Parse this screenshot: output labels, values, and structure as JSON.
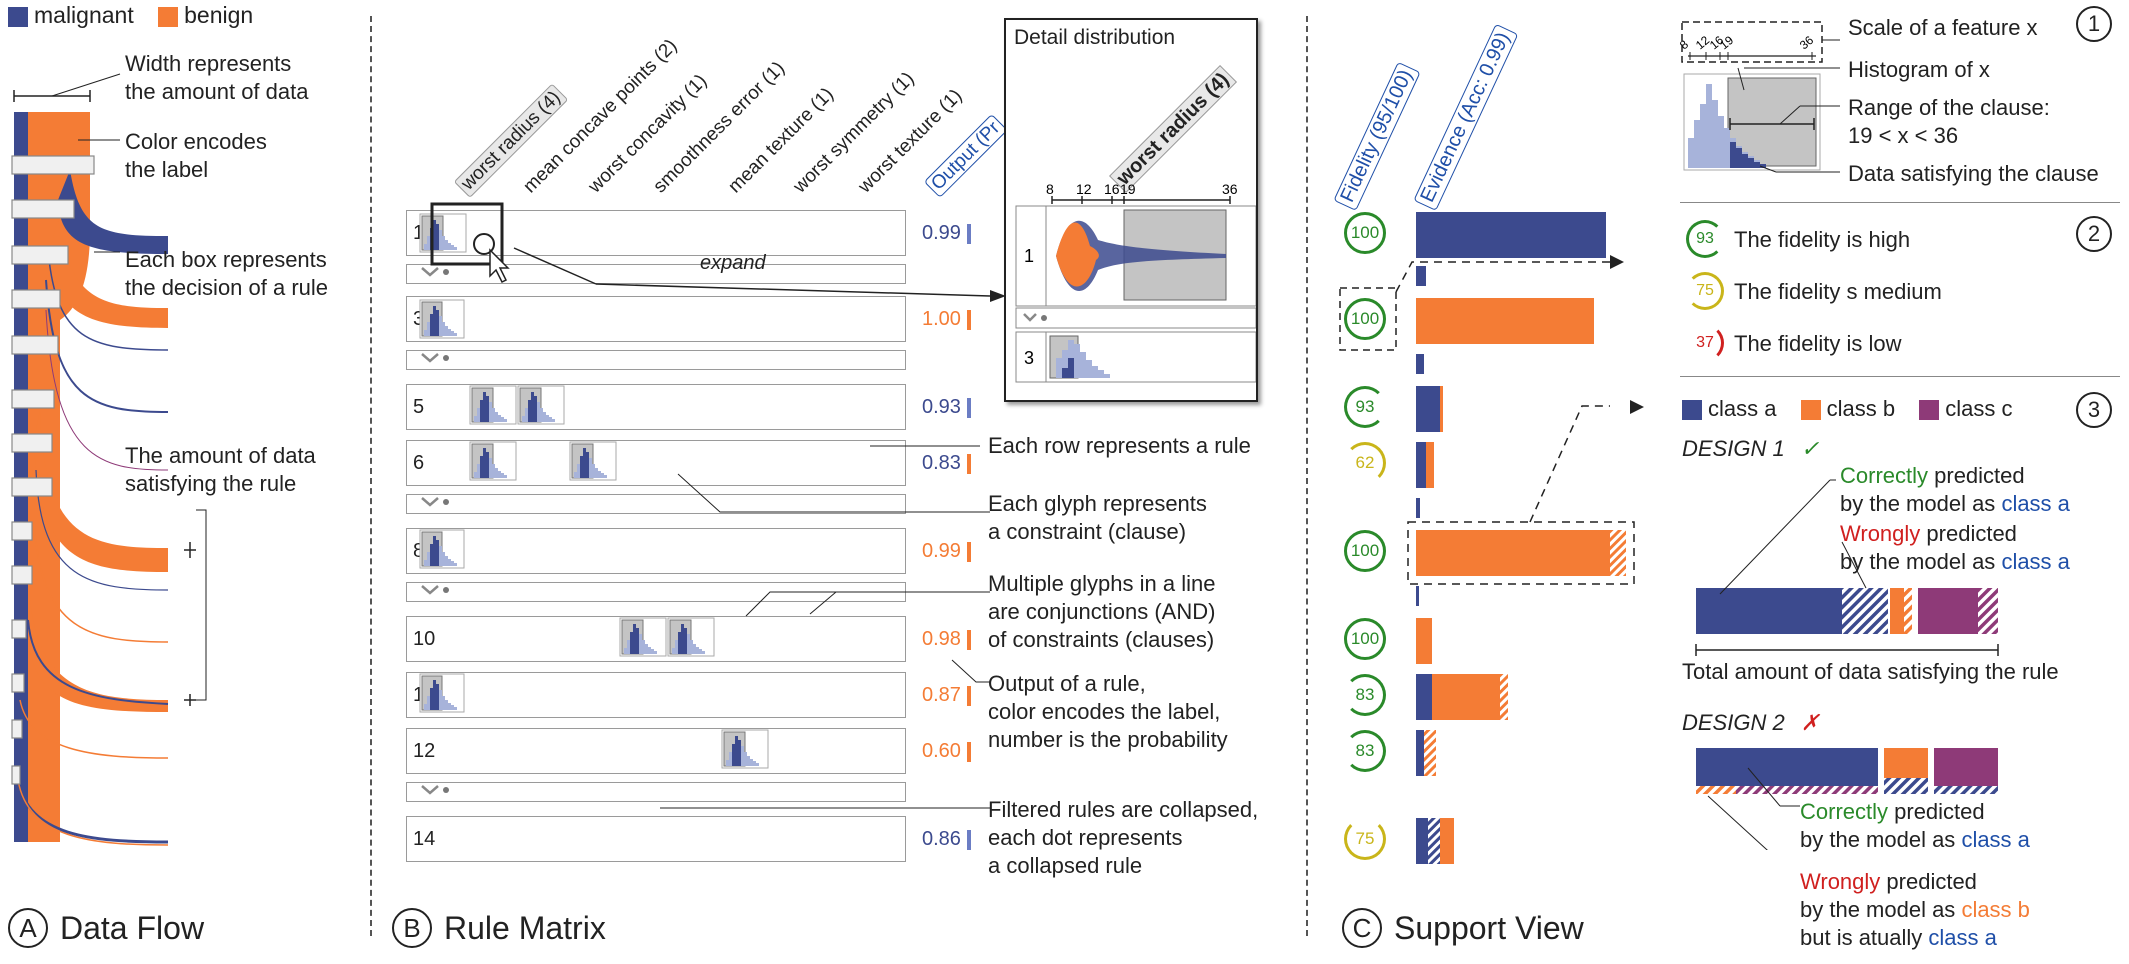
{
  "colors": {
    "malignant": "#3c4a8e",
    "benign": "#f47c35",
    "classC": "#8e3a78",
    "green": "#2a8a2a",
    "yellow": "#c9b51a",
    "red": "#d0201f",
    "blueText": "#1f4fa8",
    "hist": "#a7b3da"
  },
  "legend": {
    "malignant": "malignant",
    "benign": "benign"
  },
  "panelA": {
    "circle": "A",
    "title": "Data Flow",
    "ann_width": "Width represents\nthe amount of data",
    "ann_color": "Color encodes\nthe label",
    "ann_box": "Each box represents\nthe decision of a rule",
    "ann_amount": "The amount of data\nsatisfying the rule"
  },
  "panelB": {
    "circle": "B",
    "title": "Rule Matrix",
    "columns": [
      "worst radius (4)",
      "mean concave points (2)",
      "worst concavity (1)",
      "smoothness error (1)",
      "mean texture (1)",
      "worst symmetry (1)",
      "worst texture (1)",
      "Output (Pr"
    ],
    "rows": [
      {
        "id": "1",
        "out": "0.99",
        "cls": "m"
      },
      {
        "id": "3",
        "out": "1.00",
        "cls": "b"
      },
      {
        "id": "5",
        "out": "0.93",
        "cls": "m"
      },
      {
        "id": "6",
        "out": "0.83",
        "cls": "m"
      },
      {
        "id": "8",
        "out": "0.99",
        "cls": "b"
      },
      {
        "id": "10",
        "out": "0.98",
        "cls": "b"
      },
      {
        "id": "11",
        "out": "0.87",
        "cls": "b"
      },
      {
        "id": "12",
        "out": "0.60",
        "cls": "b"
      },
      {
        "id": "14",
        "out": "0.86",
        "cls": "m"
      }
    ],
    "expand": "expand",
    "detail_title": "Detail distribution",
    "detail_feature": "worst radius (4)",
    "detail_ticks": [
      "8",
      "12",
      "16",
      "19",
      "36"
    ],
    "detail_rows": [
      "1",
      "3"
    ],
    "ann_row": "Each row represents a rule",
    "ann_glyph": "Each glyph represents\na constraint (clause)",
    "ann_multi": "Multiple glyphs in a line\nare conjunctions (AND)\nof constraints (clauses)",
    "ann_output": "Output of a rule,\ncolor encodes the label,\nnumber is the probability",
    "ann_filtered": "Filtered rules are collapsed,\neach dot represents\na collapsed rule"
  },
  "panelC": {
    "circle": "C",
    "title": "Support View",
    "col_fid": "Fidelity (95/100)",
    "col_evi": "Evidence (Acc: 0.99)",
    "fidelity": [
      "100",
      "100",
      "93",
      "62",
      "100",
      "100",
      "83",
      "83",
      "75"
    ]
  },
  "side1": {
    "num": "1",
    "ticks": [
      "8",
      "12",
      "16",
      "19",
      "36"
    ],
    "ann_scale": "Scale of a feature x",
    "ann_hist": "Histogram of x",
    "ann_range": "Range of the clause:\n19 < x < 36",
    "ann_data": "Data satisfying the clause"
  },
  "side2": {
    "num": "2",
    "items": [
      {
        "val": "93",
        "text": "The fidelity is high"
      },
      {
        "val": "75",
        "text": "The fidelity s medium"
      },
      {
        "val": "37",
        "text": "The fidelity is low"
      }
    ]
  },
  "side3": {
    "num": "3",
    "classes": [
      "class a",
      "class b",
      "class c"
    ],
    "design1": "DESIGN 1",
    "check": "✓",
    "d1_correct_word": "Correctly",
    "d1_correct_rest": " predicted",
    "d1_line2": "by the model as ",
    "class_a": "class a",
    "d1_wrong_word": "Wrongly",
    "d1_wrong_rest": " predicted",
    "total": "Total amount of data satisfying the rule",
    "design2": "DESIGN 2",
    "cross": "✗",
    "d2_wrong_line3": "but is atually ",
    "class_b": "class b"
  }
}
